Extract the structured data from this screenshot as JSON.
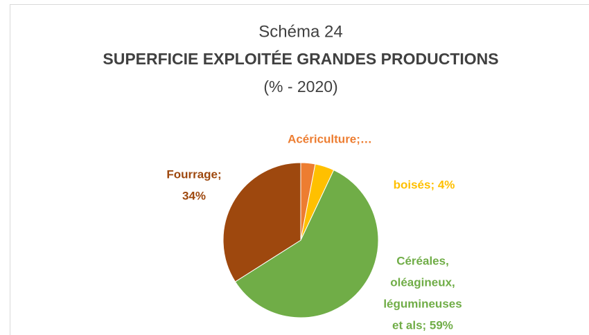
{
  "chart_data": {
    "type": "pie",
    "title": "Schéma 24",
    "subtitle": "SUPERFICIE EXPLOITÉE GRANDES PRODUCTIONS",
    "note": "(% - 2020)",
    "values": [
      3,
      4,
      59,
      34
    ],
    "colors": [
      "#ED7D31",
      "#FFC000",
      "#70AD47",
      "#9E480E"
    ],
    "value_labels": [
      [
        "Acériculture;…"
      ],
      [
        "boisés; 4%"
      ],
      [
        "Céréales,",
        "oléagineux,",
        "légumineuses",
        "et als; 59%"
      ],
      [
        "Fourrage;",
        "34%"
      ]
    ]
  }
}
